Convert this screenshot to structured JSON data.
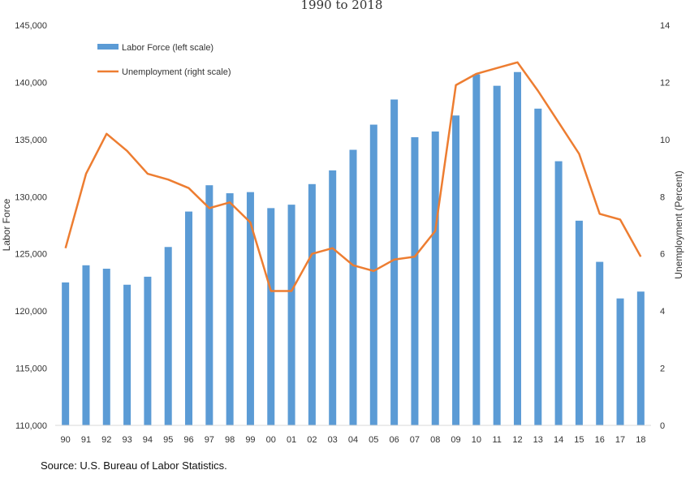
{
  "chart_data": {
    "type": "bar+line",
    "title": "1990 to 2018",
    "categories": [
      "90",
      "91",
      "92",
      "93",
      "94",
      "95",
      "96",
      "97",
      "98",
      "99",
      "00",
      "01",
      "02",
      "03",
      "04",
      "05",
      "06",
      "07",
      "08",
      "09",
      "10",
      "11",
      "12",
      "13",
      "14",
      "15",
      "16",
      "17",
      "18"
    ],
    "series": [
      {
        "name": "Labor Force (left scale)",
        "type": "bar",
        "axis": "left",
        "values": [
          122500,
          124000,
          123700,
          122300,
          123000,
          125600,
          128700,
          131000,
          130300,
          130400,
          129000,
          129300,
          131100,
          132300,
          134100,
          136300,
          138500,
          135200,
          135700,
          137100,
          140700,
          139700,
          140900,
          137700,
          133100,
          127900,
          124300,
          121100,
          121700
        ]
      },
      {
        "name": "Unemployment (right scale)",
        "type": "line",
        "axis": "right",
        "values": [
          6.2,
          8.8,
          10.2,
          9.6,
          8.8,
          8.6,
          8.3,
          7.6,
          7.8,
          7.1,
          4.7,
          4.7,
          6.0,
          6.2,
          5.6,
          5.4,
          5.8,
          5.9,
          6.8,
          11.9,
          12.3,
          12.5,
          12.7,
          11.7,
          10.6,
          9.5,
          7.4,
          7.2,
          5.9
        ]
      }
    ],
    "y_left": {
      "label": "Labor Force",
      "lim": [
        110000,
        145000
      ],
      "ticks": [
        110000,
        115000,
        120000,
        125000,
        130000,
        135000,
        140000,
        145000
      ],
      "tick_labels": [
        "110,000",
        "115,000",
        "120,000",
        "125,000",
        "130,000",
        "135,000",
        "140,000",
        "145,000"
      ]
    },
    "y_right": {
      "label": "Unemployment (Percent)",
      "lim": [
        0,
        14
      ],
      "ticks": [
        0,
        2,
        4,
        6,
        8,
        10,
        12,
        14
      ],
      "tick_labels": [
        "0",
        "2",
        "4",
        "6",
        "8",
        "10",
        "12",
        "14"
      ]
    },
    "grid": false,
    "legend_position": "top-left",
    "colors": {
      "bar": "#5b9bd5",
      "line": "#ed7d31"
    }
  },
  "source": "Source: U.S. Bureau of Labor Statistics."
}
